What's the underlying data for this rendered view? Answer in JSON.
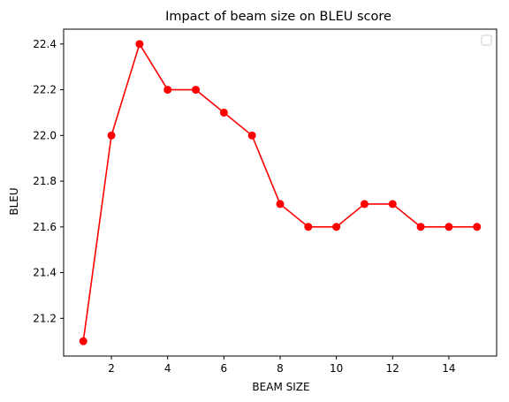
{
  "chart_data": {
    "type": "line",
    "title": "Impact of beam size on BLEU score",
    "xlabel": "BEAM SIZE",
    "ylabel": "BLEU",
    "x": [
      1,
      2,
      3,
      4,
      5,
      6,
      7,
      8,
      9,
      10,
      11,
      12,
      13,
      14,
      15
    ],
    "series": [
      {
        "values": [
          21.1,
          22.0,
          22.4,
          22.2,
          22.2,
          22.1,
          22.0,
          21.7,
          21.6,
          21.6,
          21.7,
          21.7,
          21.6,
          21.6,
          21.6
        ],
        "color": "#ff0000",
        "marker": "circle"
      }
    ],
    "xlim": [
      0.3,
      15.7
    ],
    "ylim": [
      21.035,
      22.465
    ],
    "xticks": [
      2,
      4,
      6,
      8,
      10,
      12,
      14
    ],
    "xtick_labels": [
      "2",
      "4",
      "6",
      "8",
      "10",
      "12",
      "14"
    ],
    "yticks": [
      21.2,
      21.4,
      21.6,
      21.8,
      22.0,
      22.2,
      22.4
    ],
    "ytick_labels": [
      "21.2",
      "21.4",
      "21.6",
      "21.8",
      "22.0",
      "22.2",
      "22.4"
    ],
    "grid": false,
    "legend": {
      "placement": "top-right",
      "entries": []
    }
  }
}
